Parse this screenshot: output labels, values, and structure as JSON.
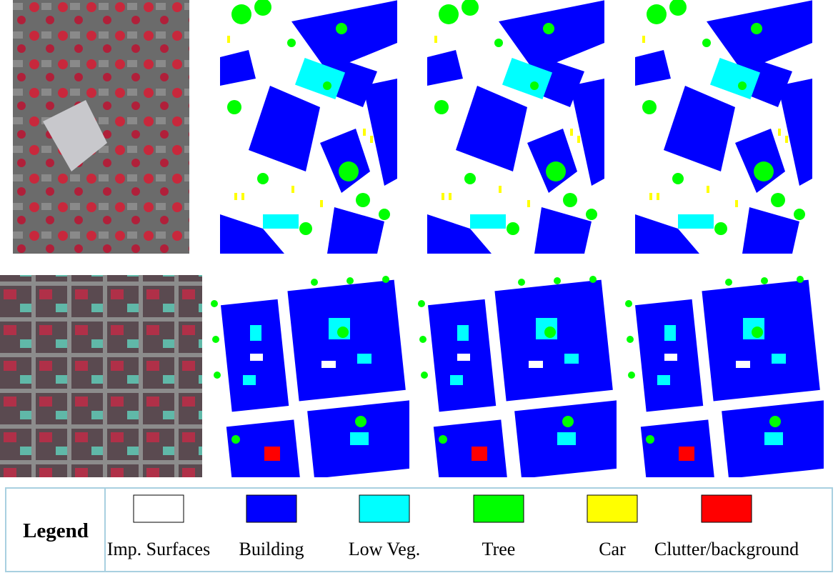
{
  "legend": {
    "title": "Legend",
    "items": [
      {
        "label": "Imp. Surfaces",
        "color": "#ffffff"
      },
      {
        "label": "Building",
        "color": "#0000ff"
      },
      {
        "label": "Low Veg.",
        "color": "#00ffff"
      },
      {
        "label": "Tree",
        "color": "#00ff00"
      },
      {
        "label": "Car",
        "color": "#ffff00"
      },
      {
        "label": "Clutter/background",
        "color": "#ff0000"
      }
    ]
  }
}
